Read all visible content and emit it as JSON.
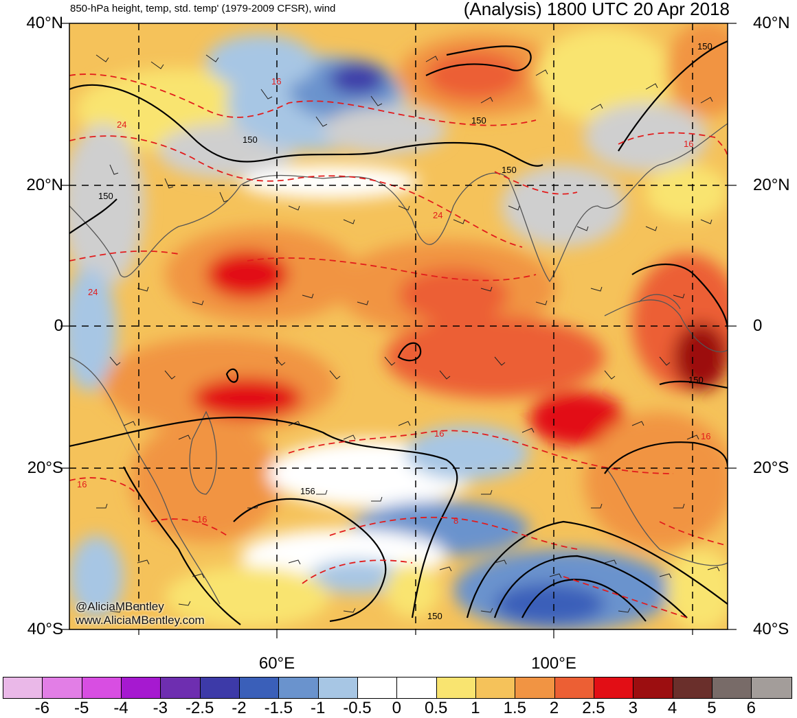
{
  "header": {
    "title_left": "850-hPa height, temp, std. temp' (1979-2009 CFSR), wind",
    "title_right": "(Analysis) 1800 UTC 20 Apr 2018"
  },
  "axes": {
    "lat_labels": [
      "40°N",
      "20°N",
      "0",
      "20°S",
      "40°S"
    ],
    "lon_labels": [
      "60°E",
      "100°E"
    ]
  },
  "contour_labels": {
    "height": [
      "150",
      "150",
      "150",
      "150",
      "150",
      "150",
      "156",
      "150"
    ],
    "temperature": [
      "16",
      "24",
      "24",
      "16",
      "16",
      "16",
      "8",
      "16",
      "24",
      "16"
    ]
  },
  "credit": {
    "handle": "@AliciaMBentley",
    "website": "www.AliciaMBentley.com"
  },
  "colorbar": {
    "colors": [
      "#eab8e8",
      "#e27ee6",
      "#d84ee2",
      "#a619d0",
      "#6e2eb0",
      "#3d3aa8",
      "#3a5fb9",
      "#6a93cd",
      "#a7c6e4",
      "#ffffff",
      "#ffffff",
      "#f9e470",
      "#f5c25a",
      "#f19443",
      "#ec5f34",
      "#e20e15",
      "#9c0e10",
      "#6a2f2b",
      "#786b68",
      "#a39d9a"
    ],
    "labels": [
      "-6",
      "-5",
      "-4",
      "-3",
      "-2.5",
      "-2",
      "-1.5",
      "-1",
      "-0.5",
      "0",
      "0.5",
      "1",
      "1.5",
      "2",
      "2.5",
      "3",
      "4",
      "5",
      "6"
    ]
  }
}
